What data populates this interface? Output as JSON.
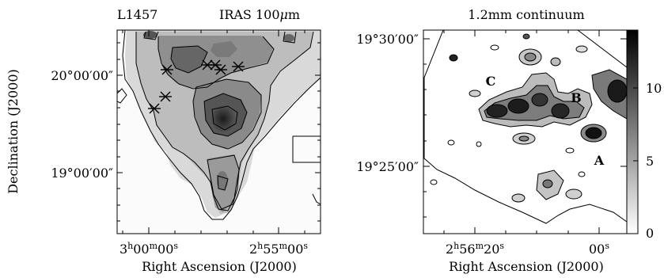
{
  "left_panel": {
    "title_left": "L1457",
    "title_right_prefix": "IRAS 100",
    "title_right_mu": "μ",
    "title_right_suffix": "m",
    "xticks": [
      {
        "h": "3",
        "m": "00",
        "s": "00"
      },
      {
        "h": "2",
        "m": "55",
        "s": "00"
      }
    ],
    "yticks": [
      "20°00′00″",
      "19°00′00″"
    ],
    "xlabel": "Right Ascension (J2000)",
    "ylabel": "Declination (J2000)"
  },
  "right_panel": {
    "title": "1.2mm continuum",
    "yticks": [
      "19°30′00″",
      "19°25′00″"
    ],
    "xticks": [
      {
        "h": "2",
        "m": "56",
        "s": "20"
      },
      {
        "s": "00"
      }
    ],
    "xlabel": "Right Ascension (J2000)",
    "labels": [
      "A",
      "B",
      "C"
    ],
    "colorbar_ticks": [
      "0",
      "5",
      "10"
    ]
  },
  "colors": {
    "ink": "#000000",
    "background": "#ffffff"
  }
}
